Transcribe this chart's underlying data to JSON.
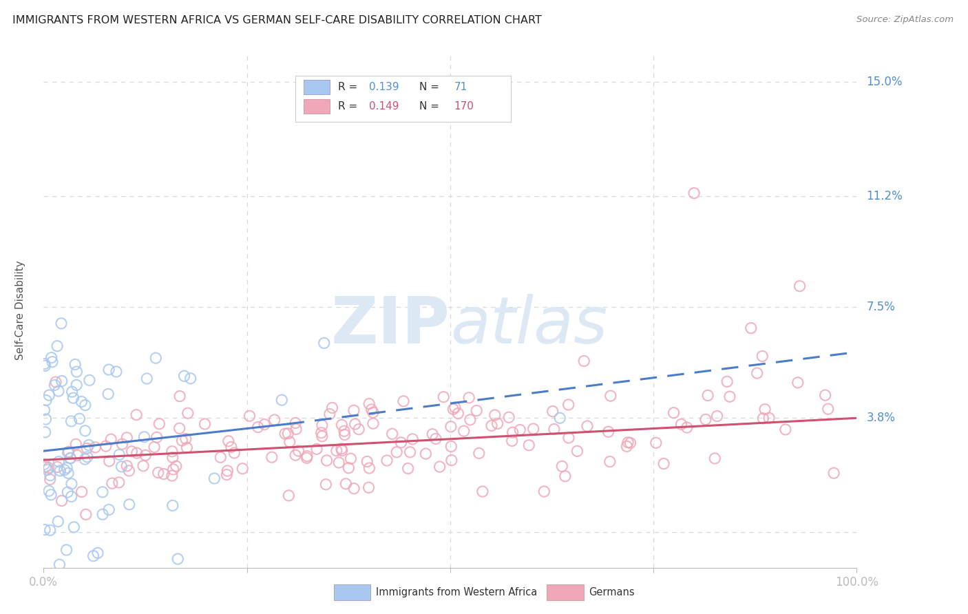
{
  "title": "IMMIGRANTS FROM WESTERN AFRICA VS GERMAN SELF-CARE DISABILITY CORRELATION CHART",
  "source": "Source: ZipAtlas.com",
  "ylabel": "Self-Care Disability",
  "xlim": [
    0.0,
    1.0
  ],
  "ylim": [
    -0.012,
    0.16
  ],
  "yticks": [
    0.0,
    0.038,
    0.075,
    0.112,
    0.15
  ],
  "ytick_labels": [
    "",
    "3.8%",
    "7.5%",
    "11.2%",
    "15.0%"
  ],
  "blue_R": 0.139,
  "blue_N": 71,
  "pink_R": 0.149,
  "pink_N": 170,
  "blue_color": "#a8c8f0",
  "pink_color": "#f0a8b8",
  "blue_edge_color": "#6090d0",
  "pink_edge_color": "#d06080",
  "blue_line_color": "#4a7cc9",
  "pink_line_color": "#d05070",
  "watermark_color": "#dde8f5",
  "background_color": "#ffffff",
  "grid_color": "#d8d8d8",
  "title_color": "#222222",
  "axis_label_color": "#555555",
  "tick_label_color": "#5090d0",
  "blue_seed": 12,
  "pink_seed": 77
}
